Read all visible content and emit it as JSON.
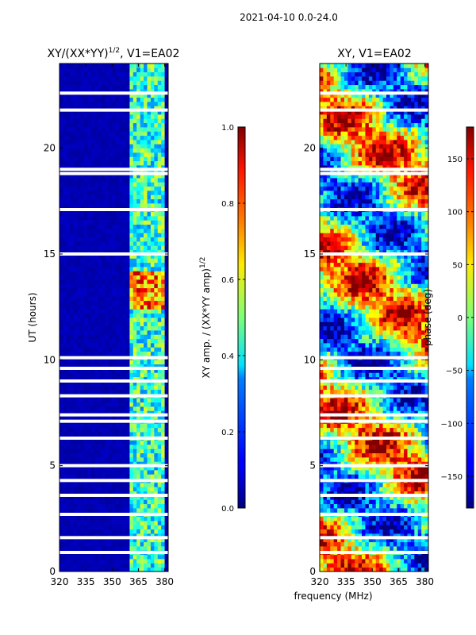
{
  "suptitle": "2021-04-10 0.0-24.0",
  "chart_data": [
    {
      "type": "heatmap",
      "title_main": "XY/(XX*YY)",
      "title_exp": "1/2",
      "title_suffix": ", V1=EA02",
      "xlabel": "",
      "ylabel": "UT (hours)",
      "xlim": [
        320,
        382
      ],
      "ylim": [
        0,
        24
      ],
      "xticks": [
        320,
        335,
        350,
        365,
        380
      ],
      "yticks": [
        0,
        5,
        10,
        15,
        20
      ],
      "colorbar": {
        "label_main": "XY amp. / (XX*YY amp)",
        "label_exp": "1/2",
        "range": [
          0.0,
          1.0
        ],
        "ticks": [
          "0.0",
          "0.2",
          "0.4",
          "0.6",
          "0.8",
          "1.0"
        ],
        "tick_values": [
          0.0,
          0.2,
          0.4,
          0.6,
          0.8,
          1.0
        ],
        "colormap": "jet"
      },
      "band_columns_mhz": [
        [
          360,
          364
        ],
        [
          364,
          368
        ],
        [
          368,
          372
        ],
        [
          372,
          376
        ],
        [
          376,
          380
        ]
      ],
      "bright_patch": {
        "x": [
          360,
          380
        ],
        "y": [
          12.5,
          14.2
        ],
        "value": 0.9
      },
      "gaps_ut": [
        22.6,
        21.8,
        19.0,
        18.8,
        17.1,
        15.0,
        10.1,
        9.6,
        9.0,
        8.3,
        7.4,
        7.1,
        6.3,
        5.0,
        4.3,
        3.6,
        2.7,
        1.6,
        0.9
      ]
    },
    {
      "type": "heatmap",
      "title": "XY, V1=EA02",
      "xlabel": "frequency (MHz)",
      "ylabel": "",
      "xlim": [
        320,
        382
      ],
      "ylim": [
        0,
        24
      ],
      "xticks": [
        320,
        335,
        350,
        365,
        380
      ],
      "yticks": [
        0,
        5,
        10,
        15,
        20
      ],
      "colorbar": {
        "label": "phase (deg)",
        "range": [
          -180,
          180
        ],
        "ticks": [
          "−150",
          "−100",
          "−50",
          "0",
          "50",
          "100",
          "150"
        ],
        "tick_values": [
          -150,
          -100,
          -50,
          0,
          50,
          100,
          150
        ],
        "colormap": "jet"
      },
      "gaps_ut": [
        22.6,
        21.8,
        19.0,
        18.8,
        17.1,
        15.0,
        10.1,
        9.6,
        9.0,
        8.3,
        7.4,
        7.1,
        6.3,
        5.0,
        4.3,
        3.6,
        2.7,
        1.6,
        0.9
      ]
    }
  ]
}
